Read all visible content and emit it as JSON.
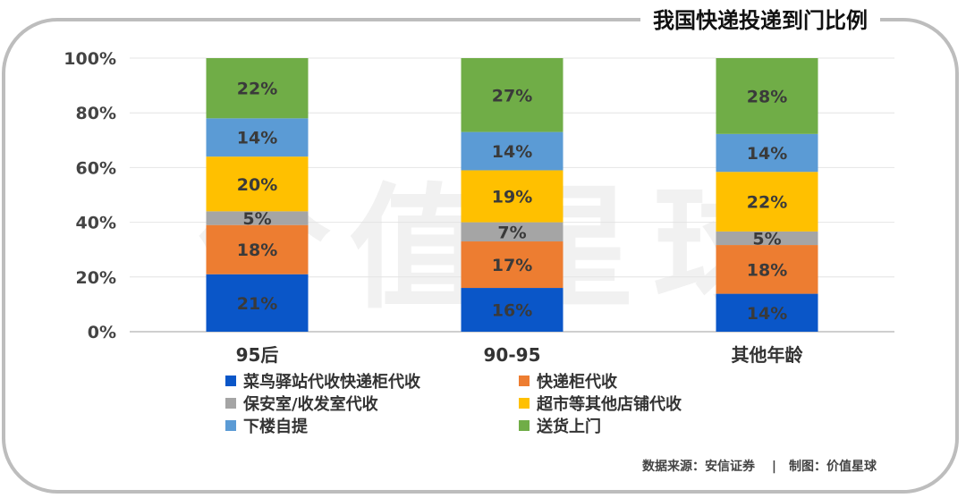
{
  "title": "我国快递投递到门比例",
  "source": "数据来源：安信证券　 |　制图：价值星球",
  "watermark": "价值星球",
  "chart_data": {
    "type": "bar",
    "stacked": true,
    "percent_stacked": true,
    "title": "我国快递投递到门比例",
    "categories": [
      "95后",
      "90-95",
      "其他年龄"
    ],
    "y_ticks": [
      "0%",
      "20%",
      "40%",
      "60%",
      "80%",
      "100%"
    ],
    "ylim": [
      0,
      100
    ],
    "grid": true,
    "legend_position": "bottom",
    "series": [
      {
        "name": "菜鸟驿站代收快递柜代收",
        "color": "#0A56C8",
        "values": [
          21,
          16,
          14
        ],
        "labels": [
          "21%",
          "16%",
          "14%"
        ]
      },
      {
        "name": "快递柜代收",
        "color": "#ED7D31",
        "values": [
          18,
          17,
          18
        ],
        "labels": [
          "18%",
          "17%",
          "18%"
        ]
      },
      {
        "name": "保安室/收发室代收",
        "color": "#A5A5A5",
        "values": [
          5,
          7,
          5
        ],
        "labels": [
          "5%",
          "7%",
          "5%"
        ]
      },
      {
        "name": "超市等其他店铺代收",
        "color": "#FFC000",
        "values": [
          20,
          19,
          22
        ],
        "labels": [
          "20%",
          "19%",
          "22%"
        ]
      },
      {
        "name": "下楼自提",
        "color": "#5B9BD5",
        "values": [
          14,
          14,
          14
        ],
        "labels": [
          "14%",
          "14%",
          "14%"
        ]
      },
      {
        "name": "送货上门",
        "color": "#70AD47",
        "values": [
          22,
          27,
          28
        ],
        "labels": [
          "22%",
          "27%",
          "28%"
        ]
      }
    ]
  }
}
